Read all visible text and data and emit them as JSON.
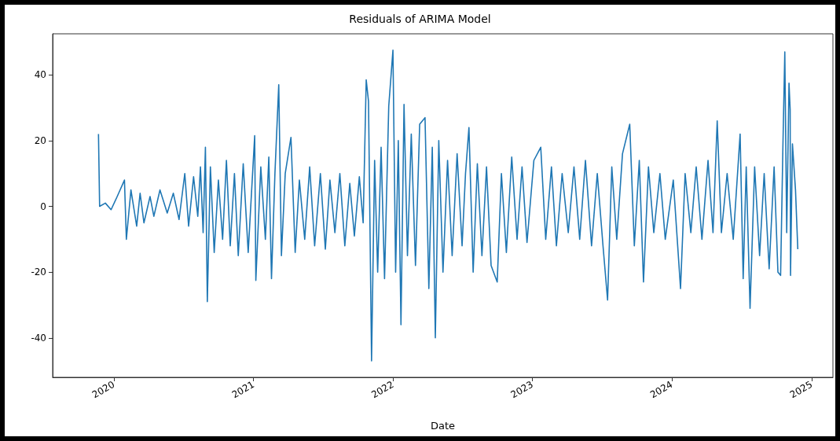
{
  "chart_data": {
    "type": "line",
    "title": "Residuals of ARIMA Model",
    "xlabel": "Date",
    "xlim": [
      "2019-07-25",
      "2025-02-26"
    ],
    "xticks": [
      {
        "value": "2020-01-01",
        "label": "2020"
      },
      {
        "value": "2021-01-01",
        "label": "2021"
      },
      {
        "value": "2022-01-01",
        "label": "2022"
      },
      {
        "value": "2023-01-01",
        "label": "2023"
      },
      {
        "value": "2024-01-01",
        "label": "2024"
      },
      {
        "value": "2025-01-01",
        "label": "2025"
      }
    ],
    "ylim": [
      -52,
      52.5
    ],
    "yticks": [
      -40,
      -20,
      0,
      20,
      40
    ],
    "grid": false,
    "marker": "none",
    "line_style": "solid",
    "series": [
      {
        "color": "#1f77b4",
        "x": [
          "2019-11-22",
          "2019-11-25",
          "2019-12-10",
          "2019-12-25",
          "2020-01-10",
          "2020-01-29",
          "2020-02-03",
          "2020-02-15",
          "2020-03-01",
          "2020-03-10",
          "2020-03-20",
          "2020-04-05",
          "2020-04-15",
          "2020-05-01",
          "2020-05-20",
          "2020-06-05",
          "2020-06-20",
          "2020-07-05",
          "2020-07-15",
          "2020-07-28",
          "2020-08-08",
          "2020-08-15",
          "2020-08-22",
          "2020-08-28",
          "2020-09-02",
          "2020-09-10",
          "2020-09-20",
          "2020-10-01",
          "2020-10-12",
          "2020-10-22",
          "2020-11-01",
          "2020-11-12",
          "2020-11-22",
          "2020-12-05",
          "2020-12-18",
          "2021-01-04",
          "2021-01-07",
          "2021-01-20",
          "2021-02-01",
          "2021-02-10",
          "2021-02-17",
          "2021-02-26",
          "2021-03-08",
          "2021-03-15",
          "2021-03-25",
          "2021-04-09",
          "2021-04-20",
          "2021-05-01",
          "2021-05-15",
          "2021-05-28",
          "2021-06-10",
          "2021-06-25",
          "2021-07-08",
          "2021-07-20",
          "2021-08-02",
          "2021-08-15",
          "2021-08-28",
          "2021-09-10",
          "2021-09-22",
          "2021-10-05",
          "2021-10-15",
          "2021-10-23",
          "2021-10-29",
          "2021-11-06",
          "2021-11-14",
          "2021-11-22",
          "2021-12-01",
          "2021-12-10",
          "2021-12-21",
          "2022-01-01",
          "2022-01-08",
          "2022-01-15",
          "2022-01-22",
          "2022-01-30",
          "2022-02-08",
          "2022-02-18",
          "2022-03-01",
          "2022-03-12",
          "2022-03-26",
          "2022-04-05",
          "2022-04-14",
          "2022-04-22",
          "2022-05-01",
          "2022-05-12",
          "2022-05-24",
          "2022-06-05",
          "2022-06-18",
          "2022-07-01",
          "2022-07-10",
          "2022-07-19",
          "2022-07-30",
          "2022-08-10",
          "2022-08-22",
          "2022-09-03",
          "2022-09-15",
          "2022-10-01",
          "2022-10-12",
          "2022-10-25",
          "2022-11-08",
          "2022-11-22",
          "2022-12-05",
          "2022-12-18",
          "2023-01-05",
          "2023-01-23",
          "2023-02-05",
          "2023-02-20",
          "2023-03-05",
          "2023-03-20",
          "2023-04-05",
          "2023-04-20",
          "2023-05-05",
          "2023-05-20",
          "2023-06-05",
          "2023-06-20",
          "2023-07-05",
          "2023-07-17",
          "2023-07-28",
          "2023-08-10",
          "2023-08-25",
          "2023-09-13",
          "2023-09-25",
          "2023-10-08",
          "2023-10-19",
          "2023-11-01",
          "2023-11-15",
          "2023-12-01",
          "2023-12-15",
          "2024-01-05",
          "2024-01-24",
          "2024-02-05",
          "2024-02-20",
          "2024-03-05",
          "2024-03-20",
          "2024-04-05",
          "2024-04-18",
          "2024-04-29",
          "2024-05-10",
          "2024-05-25",
          "2024-06-10",
          "2024-06-28",
          "2024-07-06",
          "2024-07-14",
          "2024-07-24",
          "2024-08-05",
          "2024-08-18",
          "2024-08-30",
          "2024-09-12",
          "2024-09-25",
          "2024-10-05",
          "2024-10-12",
          "2024-10-18",
          "2024-10-23",
          "2024-10-28",
          "2024-11-03",
          "2024-11-06",
          "2024-11-07",
          "2024-11-12",
          "2024-11-20",
          "2024-11-26"
        ],
        "values": [
          22,
          0,
          1,
          -1,
          3,
          8,
          -10,
          5,
          -6,
          4,
          -5,
          3,
          -3,
          5,
          -2,
          4,
          -4,
          10,
          -6,
          9,
          -3,
          12,
          -8,
          18,
          -29,
          12,
          -14,
          8,
          -10,
          14,
          -12,
          10,
          -15,
          13,
          -14,
          21.5,
          -22.5,
          12,
          -10,
          15,
          -22,
          10,
          37,
          -15,
          10,
          21,
          -14,
          8,
          -10,
          12,
          -12,
          10,
          -13,
          8,
          -8,
          10,
          -12,
          7,
          -9,
          9,
          -5,
          38.5,
          32,
          -47,
          14,
          -20,
          18,
          -22,
          30.5,
          47.5,
          -20,
          20,
          -36,
          31,
          -15,
          22,
          -18,
          25,
          27,
          -25,
          18,
          -40,
          20,
          -20,
          14,
          -15,
          16,
          -12,
          10,
          24,
          -20,
          13,
          -15,
          12,
          -18,
          -23,
          10,
          -14,
          15,
          -10,
          12,
          -11,
          14,
          18,
          -10,
          12,
          -12,
          10,
          -8,
          12,
          -10,
          14,
          -12,
          10,
          -12,
          -28.5,
          12,
          -10,
          16,
          25,
          -12,
          14,
          -23,
          12,
          -8,
          10,
          -10,
          8,
          -25,
          10,
          -8,
          12,
          -10,
          14,
          -8,
          26,
          -8,
          10,
          -10,
          22,
          -22,
          12,
          -31,
          12,
          -15,
          10,
          -19,
          12,
          -20,
          -21,
          18,
          47,
          -8,
          37.5,
          29.5,
          -21,
          19,
          5,
          -13
        ]
      }
    ]
  }
}
